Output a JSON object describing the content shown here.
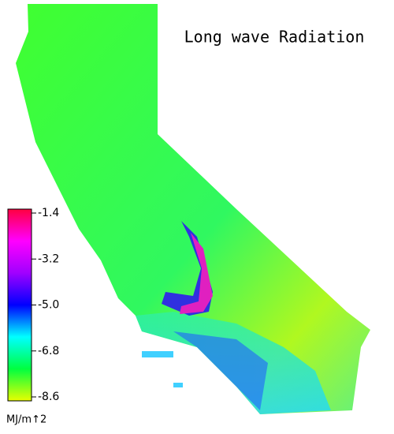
{
  "title": "Long wave Radiation",
  "colorbar": {
    "lim": [
      -8.6,
      -1.4
    ],
    "ticks": [
      -1.4,
      -3.2,
      {
        "value": -5,
        "label": "-5.0"
      },
      -6.8,
      -8.6
    ],
    "colors": [
      "#e8ff00",
      "#00ff40",
      "#00ffff",
      "#0000ff",
      "#a000ff",
      "#ff00ff",
      "#ff0040"
    ],
    "label": "MJ/m↑2"
  }
}
